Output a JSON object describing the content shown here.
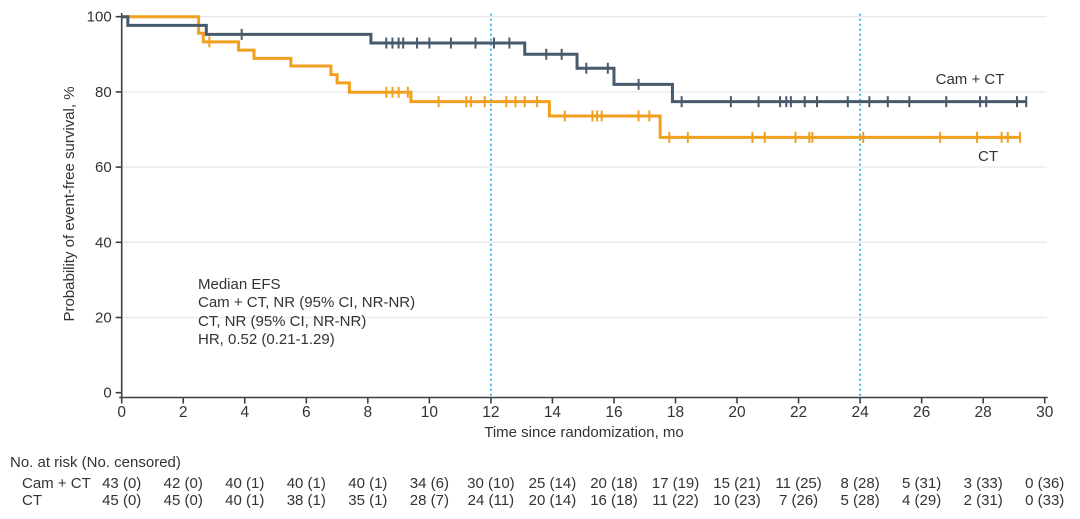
{
  "figure_colors": {
    "cam_ct_line": "#465a6b",
    "ct_line": "#f0a01e",
    "reference_line": "#42b6e4",
    "gridline": "#e9e9e9",
    "axis": "#3f3f3f",
    "text": "#333333"
  },
  "chart_data": {
    "type": "line",
    "subtype": "kaplan-meier-step",
    "title": "",
    "xlabel": "Time since randomization, mo",
    "ylabel": "Probability of event-free survival, %",
    "xlim": [
      0,
      30
    ],
    "ylim": [
      0,
      100
    ],
    "x_ticks": [
      0,
      2,
      4,
      6,
      8,
      10,
      12,
      14,
      16,
      18,
      20,
      22,
      24,
      26,
      28,
      30
    ],
    "y_ticks": [
      0,
      20,
      40,
      60,
      80,
      100
    ],
    "grid": "horizontal",
    "reference_lines_x": [
      12,
      24
    ],
    "legend_position": "labels-at-line-end",
    "annotation_lines": [
      "Median EFS",
      "Cam + CT, NR (95% CI, NR-NR)",
      "CT, NR (95% CI, NR-NR)",
      "HR, 0.52 (0.21-1.29)"
    ],
    "series": [
      {
        "name": "Cam + CT",
        "color": "#465a6b",
        "steps": [
          [
            0,
            100
          ],
          [
            0.2,
            97.7
          ],
          [
            2.75,
            95.3
          ],
          [
            8.1,
            93.0
          ],
          [
            13.1,
            90.0
          ],
          [
            14.8,
            86.3
          ],
          [
            16.0,
            82.0
          ],
          [
            17.9,
            77.4
          ]
        ],
        "end_x": 29.4,
        "censor_times": [
          3.9,
          8.6,
          8.8,
          9.0,
          9.15,
          9.6,
          10.0,
          10.7,
          11.5,
          12.1,
          12.6,
          13.8,
          14.3,
          15.1,
          15.8,
          16.8,
          18.2,
          19.8,
          20.7,
          21.4,
          21.6,
          21.75,
          22.2,
          22.6,
          23.6,
          24.3,
          24.9,
          25.6,
          26.8,
          27.9,
          28.1,
          29.1,
          29.4
        ]
      },
      {
        "name": "CT",
        "color": "#f0a01e",
        "steps": [
          [
            0,
            100
          ],
          [
            2.5,
            95.6
          ],
          [
            2.65,
            93.3
          ],
          [
            3.8,
            91.1
          ],
          [
            4.3,
            88.9
          ],
          [
            5.5,
            86.9
          ],
          [
            6.8,
            84.6
          ],
          [
            7.0,
            82.4
          ],
          [
            7.4,
            79.9
          ],
          [
            9.4,
            77.4
          ],
          [
            13.9,
            73.6
          ],
          [
            17.5,
            67.9
          ]
        ],
        "end_x": 29.2,
        "censor_times": [
          2.85,
          8.6,
          8.8,
          9.0,
          9.3,
          10.3,
          11.2,
          11.35,
          11.8,
          12.5,
          12.8,
          13.1,
          13.5,
          14.4,
          15.3,
          15.45,
          15.6,
          16.8,
          17.15,
          17.8,
          18.4,
          20.5,
          20.9,
          21.9,
          22.35,
          22.45,
          24.1,
          26.6,
          27.8,
          28.6,
          28.8,
          29.2
        ]
      }
    ]
  },
  "risk_table": {
    "header": "No. at risk (No. censored)",
    "time_points": [
      0,
      2,
      4,
      6,
      8,
      10,
      12,
      14,
      16,
      18,
      20,
      22,
      24,
      26,
      28,
      30
    ],
    "rows": [
      {
        "label": "Cam + CT",
        "values": [
          "43 (0)",
          "42 (0)",
          "40 (1)",
          "40 (1)",
          "40 (1)",
          "34 (6)",
          "30 (10)",
          "25 (14)",
          "20 (18)",
          "17 (19)",
          "15 (21)",
          "11 (25)",
          "8 (28)",
          "5 (31)",
          "3 (33)",
          "0 (36)"
        ]
      },
      {
        "label": "CT",
        "values": [
          "45 (0)",
          "45 (0)",
          "40 (1)",
          "38 (1)",
          "35 (1)",
          "28 (7)",
          "24 (11)",
          "20 (14)",
          "16 (18)",
          "11 (22)",
          "10 (23)",
          "7 (26)",
          "5 (28)",
          "4 (29)",
          "2 (31)",
          "0 (33)"
        ]
      }
    ]
  }
}
